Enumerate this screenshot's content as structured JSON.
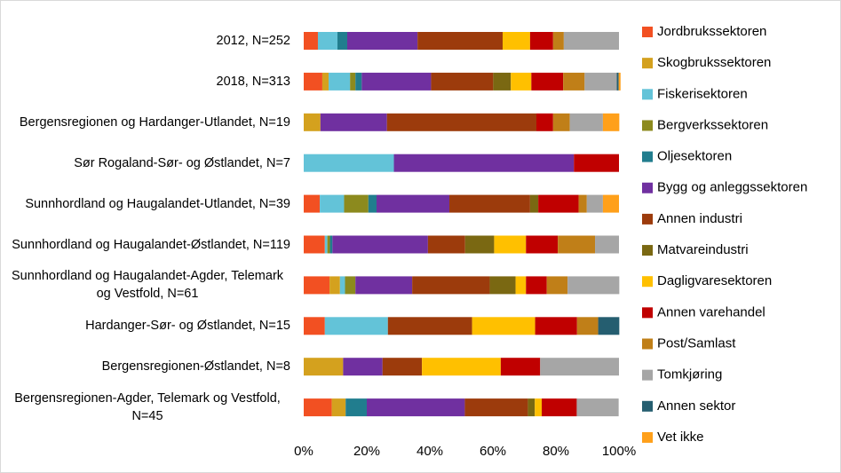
{
  "chart_data": {
    "type": "stacked_bar_horizontal_percent",
    "categories": [
      "2012, N=252",
      "2018, N=313",
      "Bergensregionen og Hardanger-Utlandet, N=19",
      "Sør Rogaland-Sør- og Østlandet, N=7",
      "Sunnhordland og Haugalandet-Utlandet, N=39",
      "Sunnhordland og Haugalandet-Østlandet, N=119",
      "Sunnhordland og Haugalandet-Agder, Telemark og Vestfold, N=61",
      "Hardanger-Sør- og Østlandet, N=15",
      "Bergensregionen-Østlandet, N=8",
      "Bergensregionen-Agder, Telemark og Vestfold, N=45"
    ],
    "series": [
      {
        "name": "Jordbrukssektoren",
        "color": "#f25022",
        "values": [
          4.5,
          5.9,
          0,
          0,
          5.1,
          6.7,
          8.2,
          6.7,
          0,
          8.9
        ]
      },
      {
        "name": "Skogbrukssektoren",
        "color": "#d4a11e",
        "values": [
          0,
          2,
          5.3,
          0,
          0,
          0,
          3.3,
          0,
          12.5,
          4.4
        ]
      },
      {
        "name": "Fiskerisektoren",
        "color": "#63c3d8",
        "values": [
          6.2,
          6.8,
          0,
          28.6,
          7.7,
          0.8,
          1.6,
          20,
          0,
          0
        ]
      },
      {
        "name": "Bergverkssektoren",
        "color": "#8c8a1e",
        "values": [
          0,
          1.7,
          0,
          0,
          7.7,
          0.8,
          3.3,
          0,
          0,
          0
        ]
      },
      {
        "name": "Oljesektoren",
        "color": "#217d8e",
        "values": [
          3.1,
          2,
          0,
          0,
          2.6,
          0.8,
          0,
          0,
          0,
          6.7
        ]
      },
      {
        "name": "Bygg og anleggssektoren",
        "color": "#7030a0",
        "values": [
          22.3,
          22,
          21.1,
          57.1,
          23.1,
          30.3,
          18,
          0,
          12.5,
          31.1
        ]
      },
      {
        "name": "Annen industri",
        "color": "#9c3b0c",
        "values": [
          27,
          19.7,
          47.4,
          0,
          25.6,
          11.8,
          24.6,
          26.7,
          12.5,
          20
        ]
      },
      {
        "name": "Matvareindustri",
        "color": "#7a6812",
        "values": [
          0,
          5.6,
          0,
          0,
          2.6,
          9.2,
          8.2,
          0,
          0,
          2.2
        ]
      },
      {
        "name": "Dagligvaresektoren",
        "color": "#ffc000",
        "values": [
          8.7,
          6.5,
          0,
          0,
          0,
          10.1,
          3.3,
          20,
          25,
          2.2
        ]
      },
      {
        "name": "Annen varehandel",
        "color": "#c00000",
        "values": [
          7.3,
          10.1,
          5.3,
          14.3,
          12.8,
          10.1,
          6.6,
          13.3,
          12.5,
          11.1
        ]
      },
      {
        "name": "Post/Samlast",
        "color": "#c07f18",
        "values": [
          3.4,
          6.8,
          5.3,
          0,
          2.6,
          11.8,
          6.6,
          6.7,
          0,
          0
        ]
      },
      {
        "name": "Tomkjøring",
        "color": "#a6a6a6",
        "values": [
          17.5,
          10.2,
          10.5,
          0,
          5.1,
          7.6,
          16.4,
          0,
          25,
          13.3
        ]
      },
      {
        "name": "Annen sektor",
        "color": "#255e70",
        "values": [
          0,
          0.6,
          0,
          0,
          0,
          0,
          0,
          6.7,
          0,
          0
        ]
      },
      {
        "name": "Vet ikke",
        "color": "#ffa01a",
        "values": [
          0,
          0.6,
          5.2,
          0,
          5.1,
          0,
          0,
          0,
          0,
          0
        ]
      }
    ],
    "xlim": [
      0,
      100
    ],
    "xticks": [
      {
        "value": 0,
        "label": "0%"
      },
      {
        "value": 20,
        "label": "20%"
      },
      {
        "value": 40,
        "label": "40%"
      },
      {
        "value": 60,
        "label": "60%"
      },
      {
        "value": 80,
        "label": "80%"
      },
      {
        "value": 100,
        "label": "100%"
      }
    ],
    "legend": "right"
  }
}
